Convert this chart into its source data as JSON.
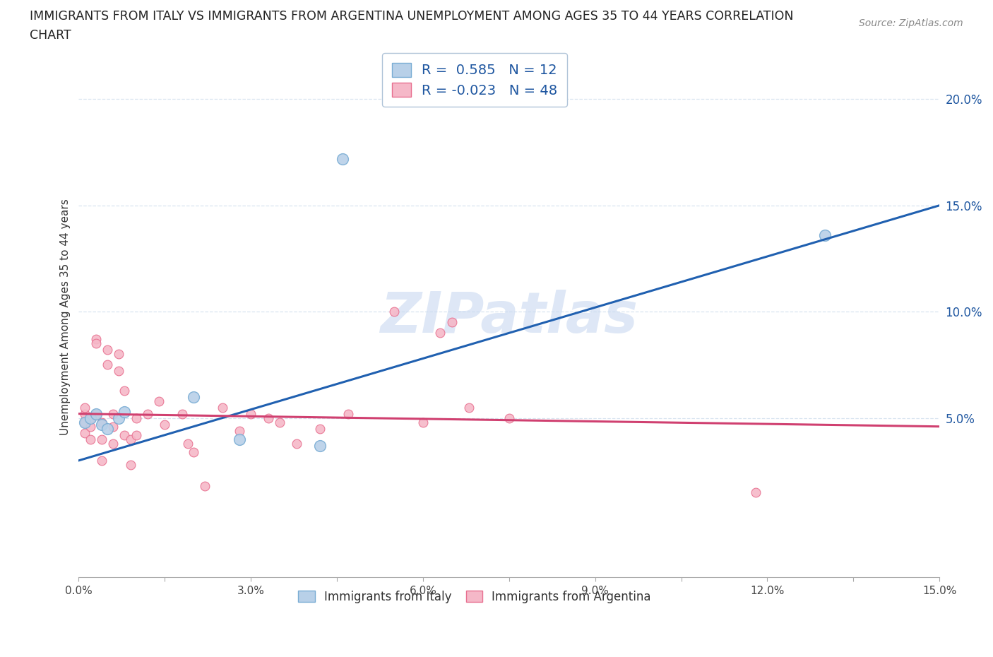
{
  "title_line1": "IMMIGRANTS FROM ITALY VS IMMIGRANTS FROM ARGENTINA UNEMPLOYMENT AMONG AGES 35 TO 44 YEARS CORRELATION",
  "title_line2": "CHART",
  "source": "Source: ZipAtlas.com",
  "ylabel": "Unemployment Among Ages 35 to 44 years",
  "xlim": [
    0.0,
    0.15
  ],
  "ylim": [
    -0.025,
    0.22
  ],
  "xticks": [
    0.0,
    0.015,
    0.03,
    0.045,
    0.06,
    0.075,
    0.09,
    0.105,
    0.12,
    0.135,
    0.15
  ],
  "xtick_labels": [
    "0.0%",
    "",
    "3.0%",
    "",
    "6.0%",
    "",
    "9.0%",
    "",
    "12.0%",
    "",
    "15.0%"
  ],
  "yticks_right": [
    0.05,
    0.1,
    0.15,
    0.2
  ],
  "ytick_right_labels": [
    "5.0%",
    "10.0%",
    "15.0%",
    "20.0%"
  ],
  "italy_R": 0.585,
  "italy_N": 12,
  "argentina_R": -0.023,
  "argentina_N": 48,
  "legend_R_color": "#1e56a0",
  "italy_color": "#b8d0e8",
  "italy_edge": "#7aadd4",
  "argentina_color": "#f5b8c8",
  "argentina_edge": "#e87090",
  "trendline_italy_color": "#2060b0",
  "trendline_argentina_color": "#d04070",
  "watermark_color": "#c8d8f0",
  "italy_points_x": [
    0.001,
    0.002,
    0.003,
    0.004,
    0.005,
    0.007,
    0.008,
    0.02,
    0.028,
    0.042,
    0.046,
    0.13
  ],
  "italy_points_y": [
    0.048,
    0.05,
    0.052,
    0.047,
    0.045,
    0.05,
    0.053,
    0.06,
    0.04,
    0.037,
    0.172,
    0.136
  ],
  "argentina_points_x": [
    0.001,
    0.001,
    0.001,
    0.001,
    0.002,
    0.002,
    0.002,
    0.003,
    0.003,
    0.003,
    0.004,
    0.004,
    0.004,
    0.005,
    0.005,
    0.006,
    0.006,
    0.006,
    0.007,
    0.007,
    0.008,
    0.008,
    0.009,
    0.009,
    0.01,
    0.01,
    0.012,
    0.014,
    0.015,
    0.018,
    0.019,
    0.02,
    0.022,
    0.025,
    0.028,
    0.03,
    0.033,
    0.035,
    0.038,
    0.042,
    0.047,
    0.055,
    0.06,
    0.063,
    0.065,
    0.068,
    0.075,
    0.118
  ],
  "argentina_points_y": [
    0.048,
    0.052,
    0.055,
    0.043,
    0.05,
    0.046,
    0.04,
    0.087,
    0.085,
    0.052,
    0.048,
    0.04,
    0.03,
    0.082,
    0.075,
    0.052,
    0.046,
    0.038,
    0.08,
    0.072,
    0.063,
    0.042,
    0.028,
    0.04,
    0.05,
    0.042,
    0.052,
    0.058,
    0.047,
    0.052,
    0.038,
    0.034,
    0.018,
    0.055,
    0.044,
    0.052,
    0.05,
    0.048,
    0.038,
    0.045,
    0.052,
    0.1,
    0.048,
    0.09,
    0.095,
    0.055,
    0.05,
    0.015
  ],
  "background_color": "#ffffff",
  "grid_color": "#d8e4f0",
  "dot_size_italy": 130,
  "dot_size_argentina": 85,
  "italy_trend_x0": 0.0,
  "italy_trend_y0": 0.03,
  "italy_trend_x1": 0.15,
  "italy_trend_y1": 0.15,
  "argentina_trend_x0": 0.0,
  "argentina_trend_y0": 0.052,
  "argentina_trend_x1": 0.15,
  "argentina_trend_y1": 0.046
}
